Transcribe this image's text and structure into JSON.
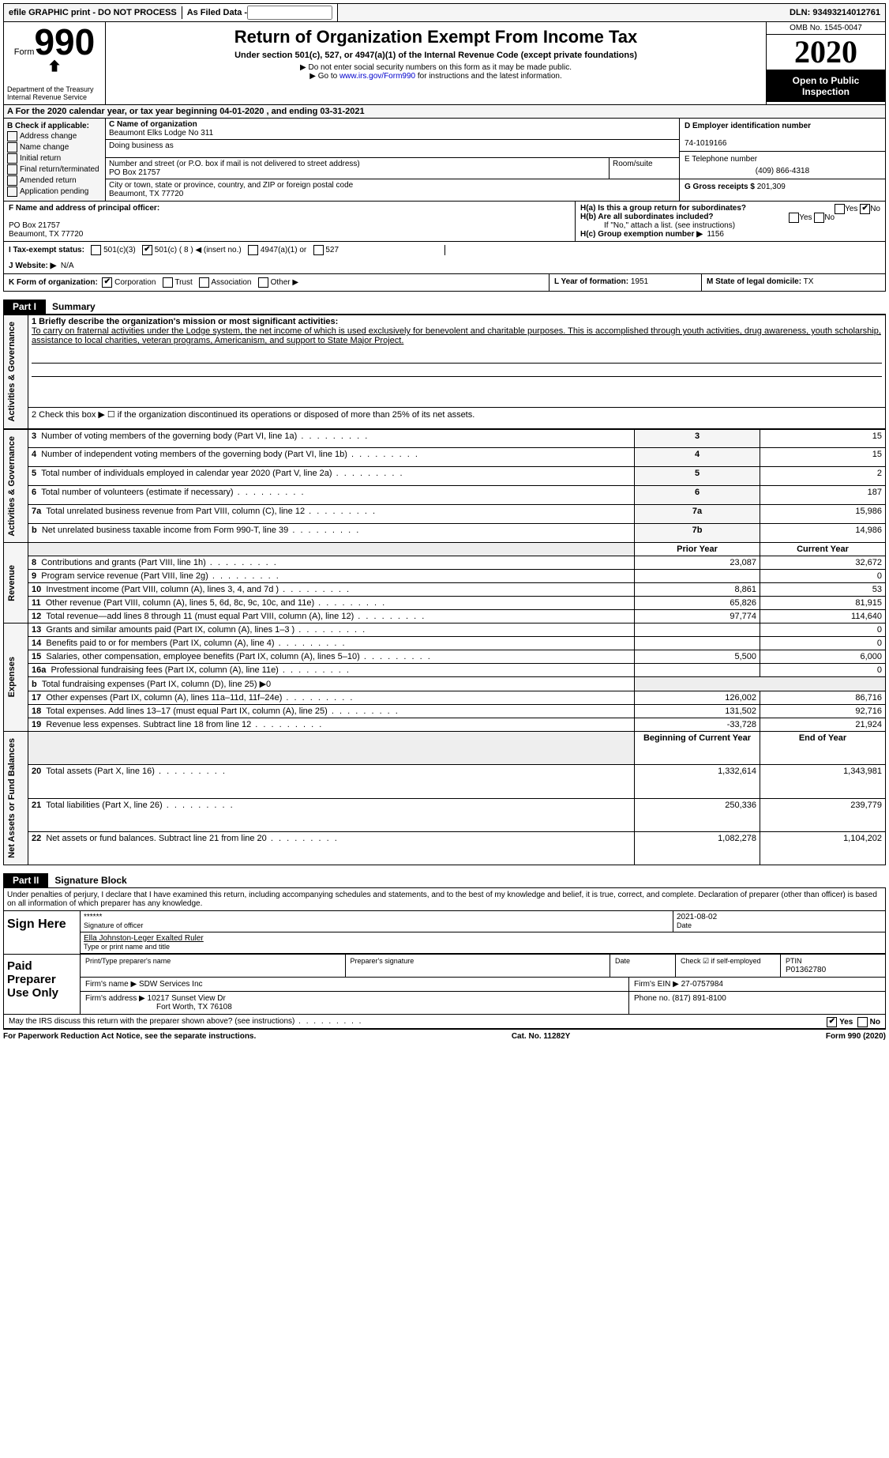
{
  "topbar": {
    "efile": "efile GRAPHIC print - DO NOT PROCESS",
    "asfiled_label": "As Filed Data -",
    "dln": "DLN: 93493214012761"
  },
  "header": {
    "form_word": "Form",
    "form_num": "990",
    "dept": "Department of the Treasury\nInternal Revenue Service",
    "title": "Return of Organization Exempt From Income Tax",
    "subtitle": "Under section 501(c), 527, or 4947(a)(1) of the Internal Revenue Code (except private foundations)",
    "note1": "▶ Do not enter social security numbers on this form as it may be made public.",
    "note2": "▶ Go to www.irs.gov/Form990 for instructions and the latest information.",
    "link": "www.irs.gov/Form990",
    "omb": "OMB No. 1545-0047",
    "year": "2020",
    "open": "Open to Public Inspection"
  },
  "row_a": "A  For the 2020 calendar year, or tax year beginning 04-01-2020  , and ending 03-31-2021",
  "col_b": {
    "title": "B Check if applicable:",
    "items": [
      "Address change",
      "Name change",
      "Initial return",
      "Final return/terminated",
      "Amended return",
      "Application pending"
    ]
  },
  "c": {
    "label_name": "C Name of organization",
    "name": "Beaumont Elks Lodge No 311",
    "dba_label": "Doing business as",
    "addr_label": "Number and street (or P.O. box if mail is not delivered to street address)",
    "room_label": "Room/suite",
    "addr": "PO Box 21757",
    "city_label": "City or town, state or province, country, and ZIP or foreign postal code",
    "city": "Beaumont, TX  77720"
  },
  "d": {
    "label": "D Employer identification number",
    "val": "74-1019166"
  },
  "e": {
    "label": "E Telephone number",
    "val": "(409) 866-4318"
  },
  "g": {
    "label": "G Gross receipts $",
    "val": "201,309"
  },
  "f": {
    "label": "F  Name and address of principal officer:",
    "addr1": "PO Box 21757",
    "addr2": "Beaumont, TX  77720"
  },
  "h": {
    "a": "H(a)  Is this a group return for subordinates?",
    "b": "H(b)  Are all subordinates included?",
    "note": "If \"No,\" attach a list. (see instructions)",
    "c": "H(c)  Group exemption number ▶",
    "c_val": "1156",
    "yes": "Yes",
    "no": "No"
  },
  "i": {
    "label": "I  Tax-exempt status:",
    "opts": [
      "501(c)(3)",
      "501(c) ( 8 ) ◀ (insert no.)",
      "4947(a)(1) or",
      "527"
    ],
    "checked": 1
  },
  "j": {
    "label": "J  Website: ▶",
    "val": "N/A"
  },
  "k": {
    "label": "K Form of organization:",
    "opts": [
      "Corporation",
      "Trust",
      "Association",
      "Other ▶"
    ],
    "checked": 0
  },
  "l": {
    "label": "L Year of formation:",
    "val": "1951"
  },
  "m": {
    "label": "M State of legal domicile:",
    "val": "TX"
  },
  "part1": {
    "tag": "Part I",
    "title": "Summary",
    "line1_label": "1 Briefly describe the organization's mission or most significant activities:",
    "line1_text": "To carry on fraternal activities under the Lodge system, the net income of which is used exclusively for benevolent and charitable purposes. This is accomplished through youth activities, drug awareness, youth scholarship, assistance to local charities, veteran programs, Americanism, and support to State Major Project.",
    "line2": "2  Check this box ▶ ☐ if the organization discontinued its operations or disposed of more than 25% of its net assets.",
    "vlabels": {
      "ag": "Activities & Governance",
      "rev": "Revenue",
      "exp": "Expenses",
      "nfb": "Net Assets or Fund Balances"
    },
    "lines_ag": [
      {
        "n": "3",
        "t": "Number of voting members of the governing body (Part VI, line 1a)",
        "box": "3",
        "v": "15"
      },
      {
        "n": "4",
        "t": "Number of independent voting members of the governing body (Part VI, line 1b)",
        "box": "4",
        "v": "15"
      },
      {
        "n": "5",
        "t": "Total number of individuals employed in calendar year 2020 (Part V, line 2a)",
        "box": "5",
        "v": "2"
      },
      {
        "n": "6",
        "t": "Total number of volunteers (estimate if necessary)",
        "box": "6",
        "v": "187"
      },
      {
        "n": "7a",
        "t": "Total unrelated business revenue from Part VIII, column (C), line 12",
        "box": "7a",
        "v": "15,986"
      },
      {
        "n": "b",
        "t": "Net unrelated business taxable income from Form 990-T, line 39",
        "box": "7b",
        "v": "14,986"
      }
    ],
    "hdr_prior": "Prior Year",
    "hdr_curr": "Current Year",
    "lines_rev": [
      {
        "n": "8",
        "t": "Contributions and grants (Part VIII, line 1h)",
        "p": "23,087",
        "c": "32,672"
      },
      {
        "n": "9",
        "t": "Program service revenue (Part VIII, line 2g)",
        "p": "",
        "c": "0"
      },
      {
        "n": "10",
        "t": "Investment income (Part VIII, column (A), lines 3, 4, and 7d )",
        "p": "8,861",
        "c": "53"
      },
      {
        "n": "11",
        "t": "Other revenue (Part VIII, column (A), lines 5, 6d, 8c, 9c, 10c, and 11e)",
        "p": "65,826",
        "c": "81,915"
      },
      {
        "n": "12",
        "t": "Total revenue—add lines 8 through 11 (must equal Part VIII, column (A), line 12)",
        "p": "97,774",
        "c": "114,640"
      }
    ],
    "lines_exp": [
      {
        "n": "13",
        "t": "Grants and similar amounts paid (Part IX, column (A), lines 1–3 )",
        "p": "",
        "c": "0"
      },
      {
        "n": "14",
        "t": "Benefits paid to or for members (Part IX, column (A), line 4)",
        "p": "",
        "c": "0"
      },
      {
        "n": "15",
        "t": "Salaries, other compensation, employee benefits (Part IX, column (A), lines 5–10)",
        "p": "5,500",
        "c": "6,000"
      },
      {
        "n": "16a",
        "t": "Professional fundraising fees (Part IX, column (A), line 11e)",
        "p": "",
        "c": "0"
      },
      {
        "n": "b",
        "t": "Total fundraising expenses (Part IX, column (D), line 25) ▶0",
        "p": null,
        "c": null
      },
      {
        "n": "17",
        "t": "Other expenses (Part IX, column (A), lines 11a–11d, 11f–24e)",
        "p": "126,002",
        "c": "86,716"
      },
      {
        "n": "18",
        "t": "Total expenses. Add lines 13–17 (must equal Part IX, column (A), line 25)",
        "p": "131,502",
        "c": "92,716"
      },
      {
        "n": "19",
        "t": "Revenue less expenses. Subtract line 18 from line 12",
        "p": "-33,728",
        "c": "21,924"
      }
    ],
    "hdr_begin": "Beginning of Current Year",
    "hdr_end": "End of Year",
    "lines_na": [
      {
        "n": "20",
        "t": "Total assets (Part X, line 16)",
        "p": "1,332,614",
        "c": "1,343,981"
      },
      {
        "n": "21",
        "t": "Total liabilities (Part X, line 26)",
        "p": "250,336",
        "c": "239,779"
      },
      {
        "n": "22",
        "t": "Net assets or fund balances. Subtract line 21 from line 20",
        "p": "1,082,278",
        "c": "1,104,202"
      }
    ]
  },
  "part2": {
    "tag": "Part II",
    "title": "Signature Block",
    "decl": "Under penalties of perjury, I declare that I have examined this return, including accompanying schedules and statements, and to the best of my knowledge and belief, it is true, correct, and complete. Declaration of preparer (other than officer) is based on all information of which preparer has any knowledge.",
    "sign_here": "Sign Here",
    "sig_stars": "******",
    "sig_of_officer": "Signature of officer",
    "sig_date": "2021-08-02",
    "date_label": "Date",
    "officer_name": "Ella Johnston-Leger Exalted Ruler",
    "type_name": "Type or print name and title",
    "paid": "Paid Preparer Use Only",
    "p_name_label": "Print/Type preparer's name",
    "p_sig_label": "Preparer's signature",
    "p_date_label": "Date",
    "p_check": "Check ☑ if self-employed",
    "p_ptin_label": "PTIN",
    "p_ptin": "P01362780",
    "firm_label": "Firm's name   ▶",
    "firm": "SDW Services Inc",
    "firm_ein_label": "Firm's EIN ▶",
    "firm_ein": "27-0757984",
    "firm_addr_label": "Firm's address ▶",
    "firm_addr1": "10217 Sunset View Dr",
    "firm_addr2": "Fort Worth, TX  76108",
    "phone_label": "Phone no.",
    "phone": "(817) 891-8100",
    "may_irs": "May the IRS discuss this return with the preparer shown above? (see instructions)"
  },
  "footer": {
    "left": "For Paperwork Reduction Act Notice, see the separate instructions.",
    "mid": "Cat. No. 11282Y",
    "right": "Form 990 (2020)"
  }
}
